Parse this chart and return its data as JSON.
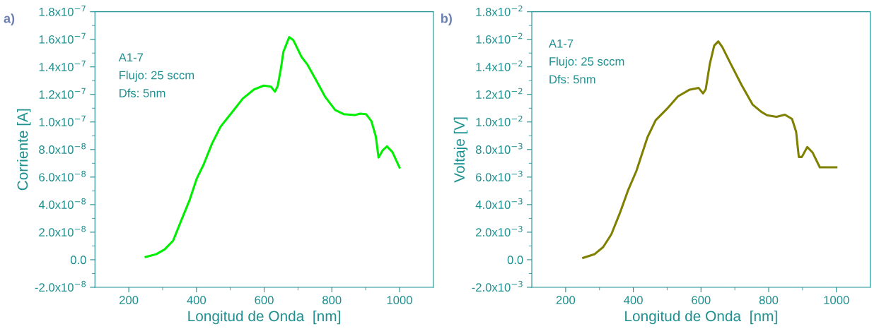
{
  "chart_data": [
    {
      "type": "line",
      "title": "a)",
      "xlabel": "Longitud de Onda  [nm]",
      "ylabel": "Corriente [A]",
      "annotations": [
        "A1-7",
        "Flujo: 25 sccm",
        "Dfs: 5nm"
      ],
      "x": [
        250,
        281,
        306,
        331,
        355,
        380,
        401,
        421,
        446,
        471,
        504,
        537,
        570,
        599,
        620,
        632,
        640,
        649,
        657,
        674,
        686,
        711,
        727,
        752,
        781,
        810,
        835,
        868,
        884,
        901,
        917,
        930,
        938,
        950,
        963,
        979,
        1000
      ],
      "series": [
        {
          "color": "#00ee00",
          "values": [
            2e-09,
            4e-09,
            7.5e-09,
            1.38e-08,
            2.85e-08,
            4.35e-08,
            5.9e-08,
            6.9e-08,
            8.43e-08,
            9.65e-08,
            1.067e-07,
            1.17e-07,
            1.236e-07,
            1.264e-07,
            1.256e-07,
            1.22e-07,
            1.26e-07,
            1.38e-07,
            1.51e-07,
            1.616e-07,
            1.595e-07,
            1.47e-07,
            1.42e-07,
            1.31e-07,
            1.18e-07,
            1.087e-07,
            1.057e-07,
            1.05e-07,
            1.06e-07,
            1.057e-07,
            1.006e-07,
            8.94e-08,
            7.42e-08,
            7.93e-08,
            8.23e-08,
            7.82e-08,
            6.7e-08
          ]
        }
      ],
      "xlim": [
        100,
        1100
      ],
      "xticks": [
        200,
        400,
        600,
        800,
        1000
      ],
      "ylim": [
        -2e-08,
        1.8e-07
      ],
      "yticks": [
        {
          "value": -2e-08,
          "label": "-2.0x10$^{−8}$"
        },
        {
          "value": 0,
          "label": "0.0"
        },
        {
          "value": 2e-08,
          "label": "2.0x10$^{−8}$"
        },
        {
          "value": 4e-08,
          "label": "4.0x10$^{−8}$"
        },
        {
          "value": 6e-08,
          "label": "6.0x10$^{−8}$"
        },
        {
          "value": 8e-08,
          "label": "8.0x10$^{−8}$"
        },
        {
          "value": 1e-07,
          "label": "1.0x10$^{−7}$"
        },
        {
          "value": 1.2e-07,
          "label": "1.2x10$^{−7}$"
        },
        {
          "value": 1.4e-07,
          "label": "1.4x10$^{−7}$"
        },
        {
          "value": 1.6e-07,
          "label": "1.6x10$^{−7}$"
        },
        {
          "value": 1.8e-07,
          "label": "1.8x10$^{−7}$"
        }
      ],
      "grid": false,
      "legend": false,
      "marker": "none",
      "line_style": "solid"
    },
    {
      "type": "line",
      "title": "b)",
      "xlabel": "Longitud de Onda  [nm]",
      "ylabel": "Voltaje [V]",
      "annotations": [
        "A1-7",
        "Flujo: 25 sccm",
        "Dfs: 5nm"
      ],
      "x": [
        252,
        286,
        311,
        335,
        360,
        384,
        409,
        442,
        466,
        499,
        532,
        565,
        593,
        606,
        614,
        626,
        639,
        651,
        663,
        688,
        720,
        753,
        778,
        795,
        823,
        848,
        869,
        881,
        889,
        898,
        914,
        930,
        951,
        1000
      ],
      "series": [
        {
          "color": "#808000",
          "values": [
            0.00014,
            0.00041,
            0.00092,
            0.00184,
            0.00337,
            0.00501,
            0.00644,
            0.0089,
            0.01012,
            0.01094,
            0.01186,
            0.01233,
            0.01247,
            0.01207,
            0.01237,
            0.01421,
            0.01554,
            0.01585,
            0.01544,
            0.01421,
            0.01268,
            0.01125,
            0.01074,
            0.01049,
            0.01037,
            0.01053,
            0.01022,
            0.0093,
            0.00746,
            0.00746,
            0.00818,
            0.00777,
            0.00671,
            0.00671
          ]
        }
      ],
      "xlim": [
        100,
        1100
      ],
      "xticks": [
        200,
        400,
        600,
        800,
        1000
      ],
      "ylim": [
        -0.002,
        0.018
      ],
      "yticks": [
        {
          "value": -0.002,
          "label": "-2.0x10$^{−3}$"
        },
        {
          "value": 0,
          "label": "0.0"
        },
        {
          "value": 0.002,
          "label": "2.0x10$^{−3}$"
        },
        {
          "value": 0.004,
          "label": "4.0x10$^{−3}$"
        },
        {
          "value": 0.006,
          "label": "6.0x10$^{−3}$"
        },
        {
          "value": 0.008,
          "label": "8.0x10$^{−3}$"
        },
        {
          "value": 0.01,
          "label": "1.0x10$^{−2}$"
        },
        {
          "value": 0.012,
          "label": "1.2x10$^{−2}$"
        },
        {
          "value": 0.014,
          "label": "1.4x10$^{−2}$"
        },
        {
          "value": 0.016,
          "label": "1.6x10$^{−2}$"
        },
        {
          "value": 0.018,
          "label": "1.8x10$^{−2}$"
        }
      ],
      "grid": false,
      "legend": false,
      "marker": "none",
      "line_style": "solid"
    }
  ]
}
